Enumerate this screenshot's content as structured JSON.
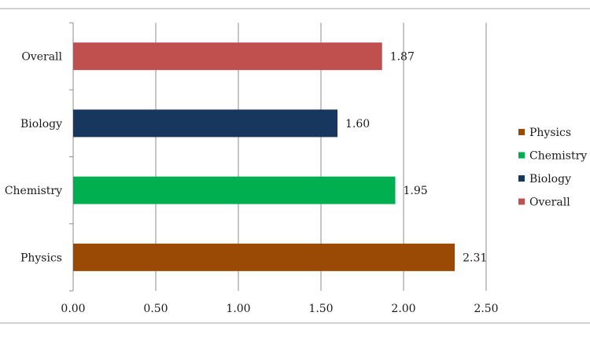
{
  "chart_data": {
    "type": "bar",
    "orientation": "horizontal",
    "categories": [
      "Physics",
      "Chemistry",
      "Biology",
      "Overall"
    ],
    "values": [
      2.31,
      1.95,
      1.6,
      1.87
    ],
    "value_labels": [
      "2.31",
      "1.95",
      "1.60",
      "1.87"
    ],
    "colors": [
      "#9b4a06",
      "#00b050",
      "#17375e",
      "#c0504d"
    ],
    "xlim": [
      0,
      2.5
    ],
    "x_ticks": [
      0,
      0.5,
      1.0,
      1.5,
      2.0,
      2.5
    ],
    "x_tick_labels": [
      "0.00",
      "0.50",
      "1.00",
      "1.50",
      "2.00",
      "2.50"
    ],
    "grid": true,
    "legend": {
      "placement": "right",
      "entries": [
        "Physics",
        "Chemistry",
        "Biology",
        "Overall"
      ]
    }
  }
}
